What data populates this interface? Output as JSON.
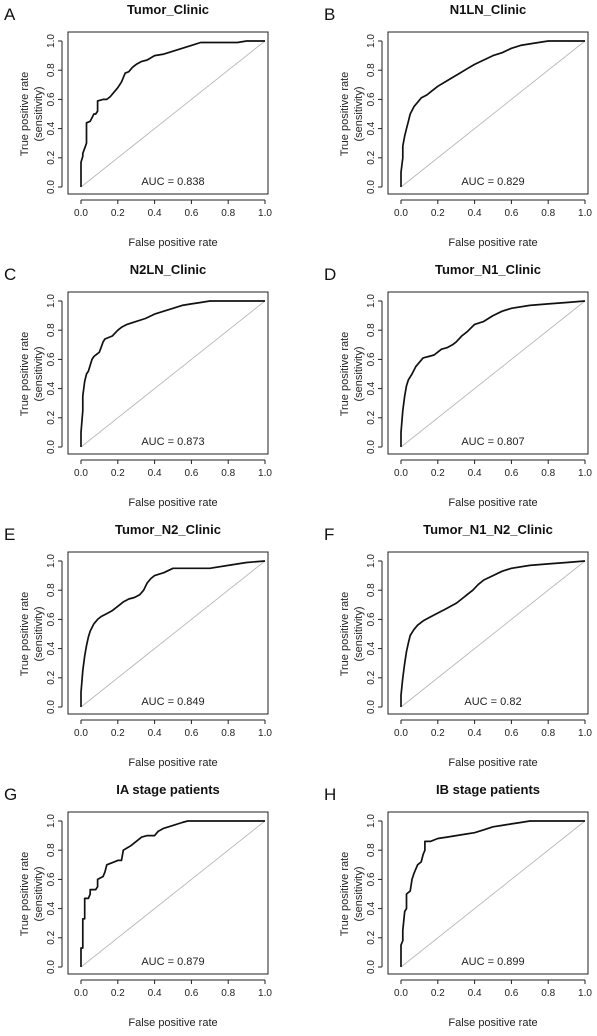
{
  "chart_data": [
    {
      "type": "line",
      "panel": "A",
      "title": "Tumor_Clinic",
      "xlabel": "False positive rate",
      "ylabel": "True positive rate (sensitivity)",
      "ylabel_lines": [
        "True positive rate",
        "(sensitivity)"
      ],
      "xlim": [
        0,
        1
      ],
      "ylim": [
        0,
        1
      ],
      "ticks": [
        "0.0",
        "0.2",
        "0.4",
        "0.6",
        "0.8",
        "1.0"
      ],
      "annotation": "AUC = 0.838",
      "series": [
        {
          "x": [
            0,
            0,
            0.01,
            0.01,
            0.03,
            0.03,
            0.05,
            0.07,
            0.08,
            0.09,
            0.09,
            0.12,
            0.14,
            0.16,
            0.18,
            0.2,
            0.22,
            0.24,
            0.26,
            0.28,
            0.3,
            0.33,
            0.36,
            0.4,
            0.45,
            0.5,
            0.55,
            0.6,
            0.65,
            0.7,
            0.85,
            0.9,
            1
          ],
          "y": [
            0,
            0.17,
            0.21,
            0.23,
            0.3,
            0.44,
            0.45,
            0.5,
            0.5,
            0.52,
            0.59,
            0.6,
            0.6,
            0.62,
            0.65,
            0.68,
            0.72,
            0.78,
            0.79,
            0.82,
            0.84,
            0.86,
            0.87,
            0.9,
            0.91,
            0.93,
            0.95,
            0.97,
            0.99,
            0.99,
            0.99,
            1,
            1
          ]
        }
      ]
    },
    {
      "type": "line",
      "panel": "B",
      "title": "N1LN_Clinic",
      "xlabel": "False positive rate",
      "ylabel": "True positive rate (sensitivity)",
      "ylabel_lines": [
        "True positive rate",
        "(sensitivity)"
      ],
      "xlim": [
        0,
        1
      ],
      "ylim": [
        0,
        1
      ],
      "ticks": [
        "0.0",
        "0.2",
        "0.4",
        "0.6",
        "0.8",
        "1.0"
      ],
      "annotation": "AUC = 0.829",
      "series": [
        {
          "x": [
            0,
            0,
            0.01,
            0.01,
            0.02,
            0.03,
            0.04,
            0.05,
            0.07,
            0.09,
            0.11,
            0.14,
            0.17,
            0.2,
            0.24,
            0.28,
            0.32,
            0.36,
            0.4,
            0.45,
            0.5,
            0.55,
            0.6,
            0.65,
            0.7,
            0.8,
            0.9,
            1
          ],
          "y": [
            0,
            0.1,
            0.2,
            0.28,
            0.35,
            0.4,
            0.45,
            0.5,
            0.55,
            0.58,
            0.61,
            0.63,
            0.66,
            0.69,
            0.72,
            0.75,
            0.78,
            0.81,
            0.84,
            0.87,
            0.9,
            0.92,
            0.95,
            0.97,
            0.98,
            1,
            1,
            1
          ]
        }
      ]
    },
    {
      "type": "line",
      "panel": "C",
      "title": "N2LN_Clinic",
      "xlabel": "False positive rate",
      "ylabel": "True positive rate (sensitivity)",
      "ylabel_lines": [
        "True positive rate",
        "(sensitivity)"
      ],
      "xlim": [
        0,
        1
      ],
      "ylim": [
        0,
        1
      ],
      "ticks": [
        "0.0",
        "0.2",
        "0.4",
        "0.6",
        "0.8",
        "1.0"
      ],
      "annotation": "AUC = 0.873",
      "series": [
        {
          "x": [
            0,
            0,
            0.01,
            0.01,
            0.02,
            0.03,
            0.04,
            0.05,
            0.06,
            0.07,
            0.09,
            0.1,
            0.12,
            0.13,
            0.15,
            0.17,
            0.2,
            0.22,
            0.25,
            0.3,
            0.35,
            0.4,
            0.45,
            0.5,
            0.55,
            0.6,
            0.65,
            0.7,
            1
          ],
          "y": [
            0,
            0.1,
            0.25,
            0.35,
            0.45,
            0.5,
            0.52,
            0.56,
            0.6,
            0.62,
            0.64,
            0.65,
            0.72,
            0.74,
            0.75,
            0.76,
            0.8,
            0.82,
            0.84,
            0.86,
            0.88,
            0.91,
            0.93,
            0.95,
            0.97,
            0.98,
            0.99,
            1,
            1
          ]
        }
      ]
    },
    {
      "type": "line",
      "panel": "D",
      "title": "Tumor_N1_Clinic",
      "xlabel": "False positive rate",
      "ylabel": "True positive rate (sensitivity)",
      "ylabel_lines": [
        "True positive rate",
        "(sensitivity)"
      ],
      "xlim": [
        0,
        1
      ],
      "ylim": [
        0,
        1
      ],
      "ticks": [
        "0.0",
        "0.2",
        "0.4",
        "0.6",
        "0.8",
        "1.0"
      ],
      "annotation": "AUC = 0.807",
      "series": [
        {
          "x": [
            0,
            0,
            0.01,
            0.02,
            0.03,
            0.04,
            0.06,
            0.08,
            0.1,
            0.12,
            0.15,
            0.18,
            0.2,
            0.22,
            0.25,
            0.28,
            0.3,
            0.33,
            0.36,
            0.4,
            0.45,
            0.5,
            0.55,
            0.6,
            0.7,
            0.8,
            0.9,
            1
          ],
          "y": [
            0,
            0.1,
            0.25,
            0.35,
            0.42,
            0.46,
            0.5,
            0.55,
            0.58,
            0.61,
            0.62,
            0.63,
            0.65,
            0.67,
            0.68,
            0.7,
            0.72,
            0.76,
            0.79,
            0.84,
            0.86,
            0.9,
            0.93,
            0.95,
            0.97,
            0.98,
            0.99,
            1
          ]
        }
      ]
    },
    {
      "type": "line",
      "panel": "E",
      "title": "Tumor_N2_Clinic",
      "xlabel": "False positive rate",
      "ylabel": "True positive rate (sensitivity)",
      "ylabel_lines": [
        "True positive rate",
        "(sensitivity)"
      ],
      "xlim": [
        0,
        1
      ],
      "ylim": [
        0,
        1
      ],
      "ticks": [
        "0.0",
        "0.2",
        "0.4",
        "0.6",
        "0.8",
        "1.0"
      ],
      "annotation": "AUC = 0.849",
      "series": [
        {
          "x": [
            0,
            0,
            0.01,
            0.02,
            0.03,
            0.04,
            0.05,
            0.07,
            0.09,
            0.11,
            0.14,
            0.17,
            0.2,
            0.23,
            0.26,
            0.29,
            0.32,
            0.34,
            0.36,
            0.38,
            0.4,
            0.45,
            0.5,
            0.55,
            0.6,
            0.7,
            0.8,
            0.9,
            1
          ],
          "y": [
            0,
            0.1,
            0.25,
            0.35,
            0.42,
            0.48,
            0.52,
            0.57,
            0.6,
            0.62,
            0.64,
            0.66,
            0.69,
            0.72,
            0.74,
            0.75,
            0.77,
            0.8,
            0.85,
            0.88,
            0.9,
            0.92,
            0.95,
            0.95,
            0.95,
            0.95,
            0.97,
            0.99,
            1
          ]
        }
      ]
    },
    {
      "type": "line",
      "panel": "F",
      "title": "Tumor_N1_N2_Clinic",
      "xlabel": "False positive rate",
      "ylabel": "True positive rate (sensitivity)",
      "ylabel_lines": [
        "True positive rate",
        "(sensitivity)"
      ],
      "xlim": [
        0,
        1
      ],
      "ylim": [
        0,
        1
      ],
      "ticks": [
        "0.0",
        "0.2",
        "0.4",
        "0.6",
        "0.8",
        "1.0"
      ],
      "annotation": "AUC = 0.82",
      "series": [
        {
          "x": [
            0,
            0,
            0.01,
            0.02,
            0.03,
            0.04,
            0.05,
            0.07,
            0.09,
            0.12,
            0.15,
            0.18,
            0.21,
            0.24,
            0.27,
            0.3,
            0.33,
            0.36,
            0.39,
            0.42,
            0.45,
            0.5,
            0.55,
            0.6,
            0.7,
            0.8,
            0.9,
            1
          ],
          "y": [
            0,
            0.08,
            0.2,
            0.3,
            0.38,
            0.44,
            0.49,
            0.53,
            0.56,
            0.59,
            0.61,
            0.63,
            0.65,
            0.67,
            0.69,
            0.71,
            0.74,
            0.77,
            0.8,
            0.84,
            0.87,
            0.9,
            0.93,
            0.95,
            0.97,
            0.98,
            0.99,
            1
          ]
        }
      ]
    },
    {
      "type": "line",
      "panel": "G",
      "title": "IA stage patients",
      "xlabel": "False positive rate",
      "ylabel": "True positive rate (sensitivity)",
      "ylabel_lines": [
        "True positive rate",
        "(sensitivity)"
      ],
      "xlim": [
        0,
        1
      ],
      "ylim": [
        0,
        1
      ],
      "ticks": [
        "0.0",
        "0.2",
        "0.4",
        "0.6",
        "0.8",
        "1.0"
      ],
      "annotation": "AUC = 0.879",
      "series": [
        {
          "x": [
            0,
            0,
            0.01,
            0.01,
            0.02,
            0.02,
            0.04,
            0.05,
            0.05,
            0.08,
            0.09,
            0.09,
            0.12,
            0.13,
            0.14,
            0.18,
            0.2,
            0.22,
            0.23,
            0.27,
            0.3,
            0.33,
            0.36,
            0.4,
            0.42,
            0.45,
            0.5,
            0.55,
            0.58,
            1
          ],
          "y": [
            0,
            0.13,
            0.13,
            0.33,
            0.33,
            0.47,
            0.47,
            0.5,
            0.53,
            0.53,
            0.55,
            0.6,
            0.62,
            0.65,
            0.7,
            0.72,
            0.73,
            0.73,
            0.8,
            0.83,
            0.86,
            0.89,
            0.9,
            0.9,
            0.93,
            0.95,
            0.97,
            0.99,
            1,
            1
          ]
        }
      ]
    },
    {
      "type": "line",
      "panel": "H",
      "title": "IB stage patients",
      "xlabel": "False positive rate",
      "ylabel": "True positive rate (sensitivity)",
      "ylabel_lines": [
        "True positive rate",
        "(sensitivity)"
      ],
      "xlim": [
        0,
        1
      ],
      "ylim": [
        0,
        1
      ],
      "ticks": [
        "0.0",
        "0.2",
        "0.4",
        "0.6",
        "0.8",
        "1.0"
      ],
      "annotation": "AUC = 0.899",
      "series": [
        {
          "x": [
            0,
            0,
            0.01,
            0.01,
            0.02,
            0.03,
            0.03,
            0.05,
            0.06,
            0.07,
            0.09,
            0.11,
            0.12,
            0.13,
            0.13,
            0.16,
            0.2,
            0.25,
            0.3,
            0.35,
            0.4,
            0.45,
            0.5,
            0.55,
            0.6,
            0.65,
            0.7,
            1
          ],
          "y": [
            0,
            0.15,
            0.18,
            0.25,
            0.38,
            0.4,
            0.5,
            0.52,
            0.6,
            0.64,
            0.7,
            0.72,
            0.77,
            0.8,
            0.86,
            0.86,
            0.88,
            0.89,
            0.9,
            0.91,
            0.92,
            0.94,
            0.96,
            0.97,
            0.98,
            0.99,
            1,
            1
          ]
        }
      ]
    }
  ]
}
